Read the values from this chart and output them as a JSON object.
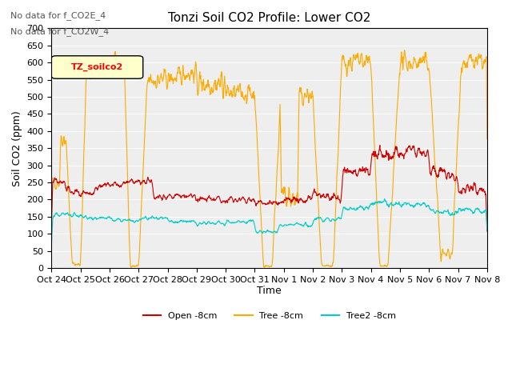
{
  "title": "Tonzi Soil CO2 Profile: Lower CO2",
  "ylabel": "Soil CO2 (ppm)",
  "xlabel": "Time",
  "annotation1": "No data for f_CO2E_4",
  "annotation2": "No data for f_CO2W_4",
  "legend_label": "TZ_soilco2",
  "ylim": [
    0,
    700
  ],
  "yticks": [
    0,
    50,
    100,
    150,
    200,
    250,
    300,
    350,
    400,
    450,
    500,
    550,
    600,
    650,
    700
  ],
  "tick_labels": [
    "Oct 24",
    "Oct 25",
    "Oct 26",
    "Oct 27",
    "Oct 28",
    "Oct 29",
    "Oct 30",
    "Oct 31",
    "Nov 1",
    "Nov 2",
    "Nov 3",
    "Nov 4",
    "Nov 5",
    "Nov 6",
    "Nov 7",
    "Nov 8"
  ],
  "colors": {
    "open": "#cc0000",
    "tree": "#ffaa00",
    "tree2": "#00cccc",
    "plot_bg": "#eeeeee"
  },
  "line_labels": [
    "Open -8cm",
    "Tree -8cm",
    "Tree2 -8cm"
  ]
}
